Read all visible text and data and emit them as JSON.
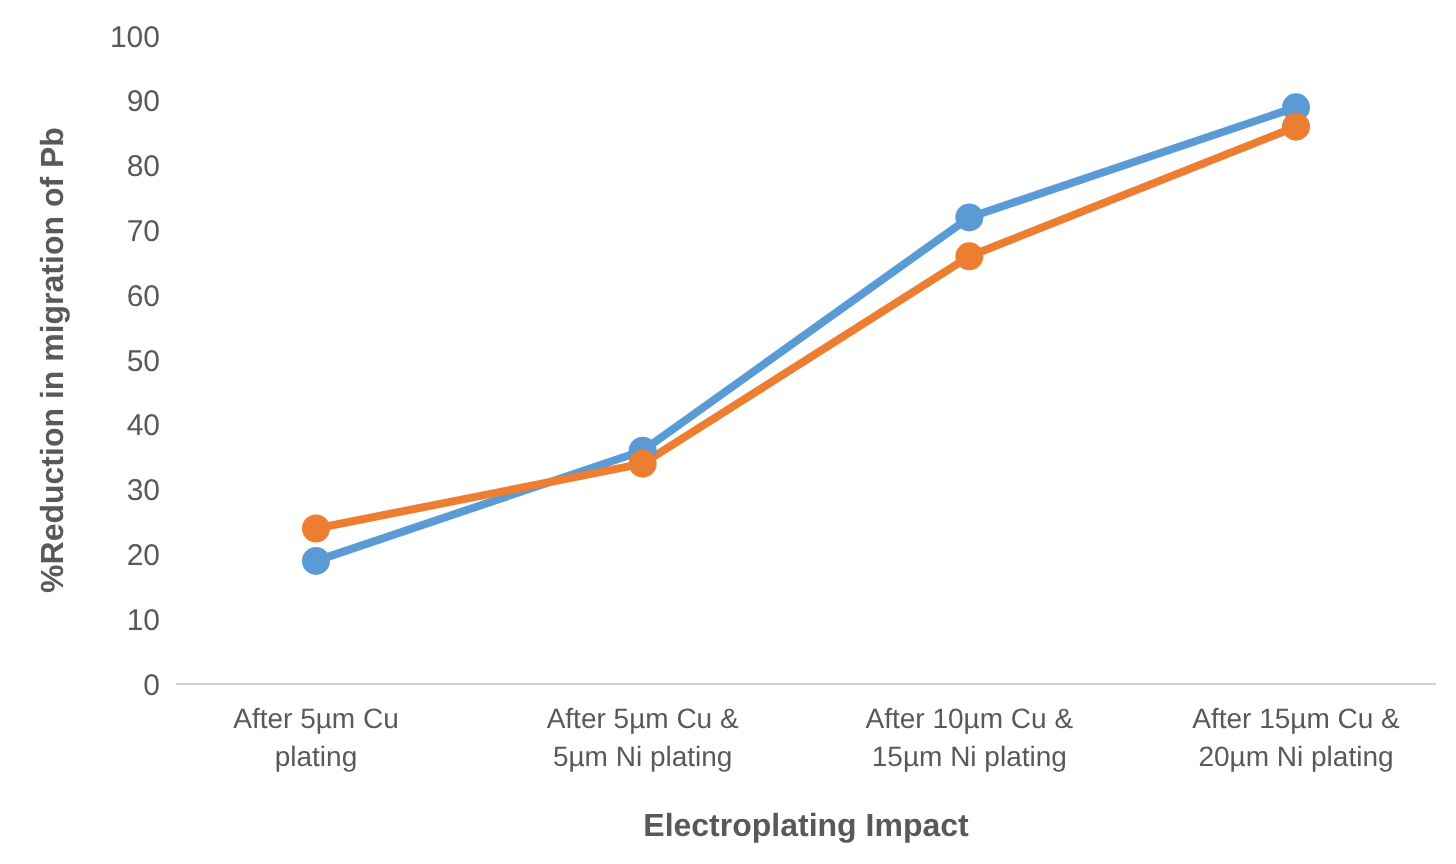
{
  "chart_data": {
    "type": "line",
    "xlabel": "Electroplating Impact",
    "ylabel": "%Reduction in migration of Pb",
    "categories": [
      "After 5µm Cu plating",
      "After 5µm Cu & 5µm Ni plating",
      "After 10µm Cu & 15µm Ni plating",
      "After 15µm Cu & 20µm Ni plating"
    ],
    "series": [
      {
        "color": "#5b9bd5",
        "values": [
          19,
          36,
          72,
          89
        ]
      },
      {
        "color": "#ed7d31",
        "values": [
          24,
          34,
          66,
          86
        ]
      }
    ],
    "ylim": [
      0,
      100
    ],
    "yticks": [
      0,
      10,
      20,
      30,
      40,
      50,
      60,
      70,
      80,
      90,
      100
    ],
    "grid": false,
    "legend": false,
    "marker": "circle",
    "line_style": "solid"
  }
}
